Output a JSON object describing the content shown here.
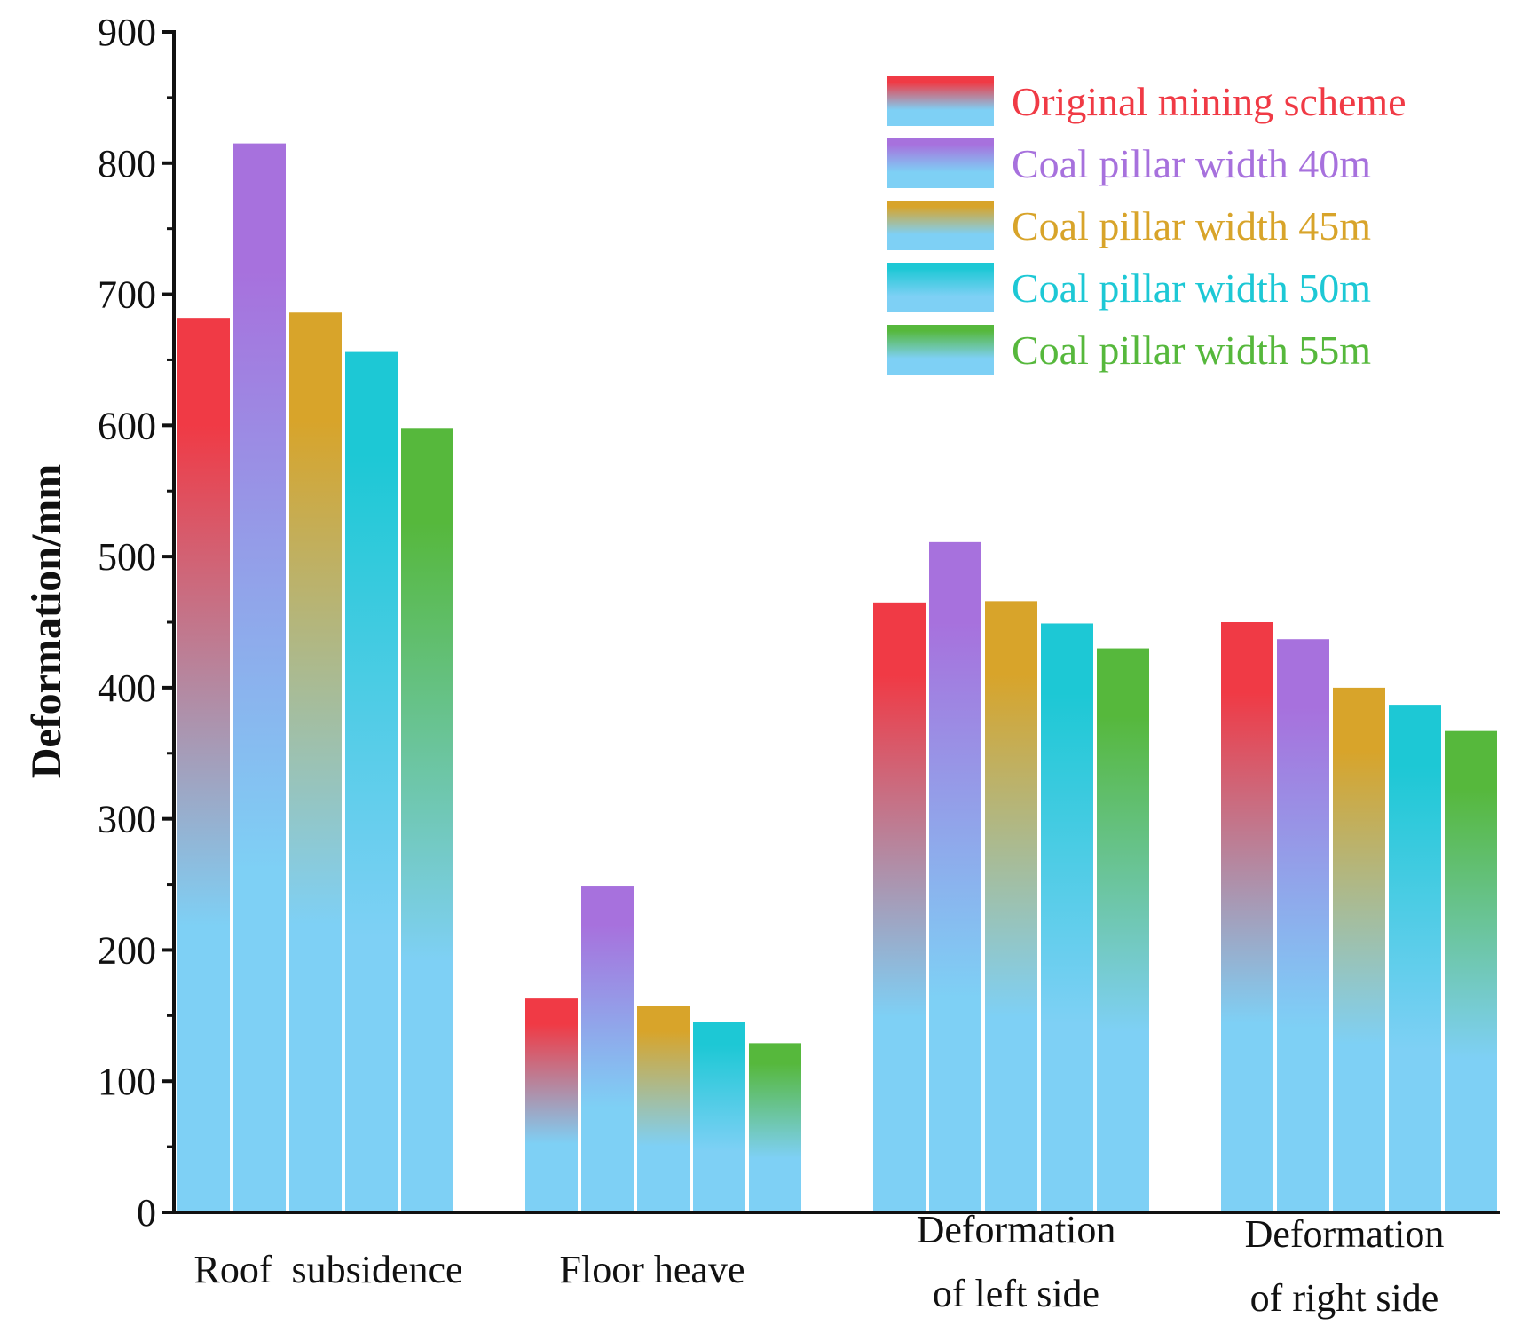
{
  "chart_data": {
    "type": "bar",
    "title": "",
    "xlabel": "",
    "ylabel": "Deformation/mm",
    "ylim": [
      0,
      900
    ],
    "yticks": [
      0,
      100,
      200,
      300,
      400,
      500,
      600,
      700,
      800,
      900
    ],
    "grid": false,
    "legend_position": "top-right",
    "categories": [
      [
        "Roof  subsidence"
      ],
      [
        "Floor heave"
      ],
      [
        "Deformation",
        "of left side"
      ],
      [
        "Deformation",
        "of right side"
      ]
    ],
    "series": [
      {
        "name": "Original mining scheme",
        "color": "#f03a45",
        "values": [
          682,
          163,
          465,
          450
        ]
      },
      {
        "name": "Coal pillar width 40m",
        "color": "#a771dd",
        "values": [
          815,
          249,
          511,
          437
        ]
      },
      {
        "name": "Coal pillar width 45m",
        "color": "#d8a42a",
        "values": [
          686,
          157,
          466,
          400
        ]
      },
      {
        "name": "Coal pillar width 50m",
        "color": "#1dc8d5",
        "values": [
          656,
          145,
          449,
          387
        ]
      },
      {
        "name": "Coal pillar width 55m",
        "color": "#56b83c",
        "values": [
          598,
          129,
          430,
          367
        ]
      }
    ],
    "bar_base_color": "#7ed0f5"
  }
}
